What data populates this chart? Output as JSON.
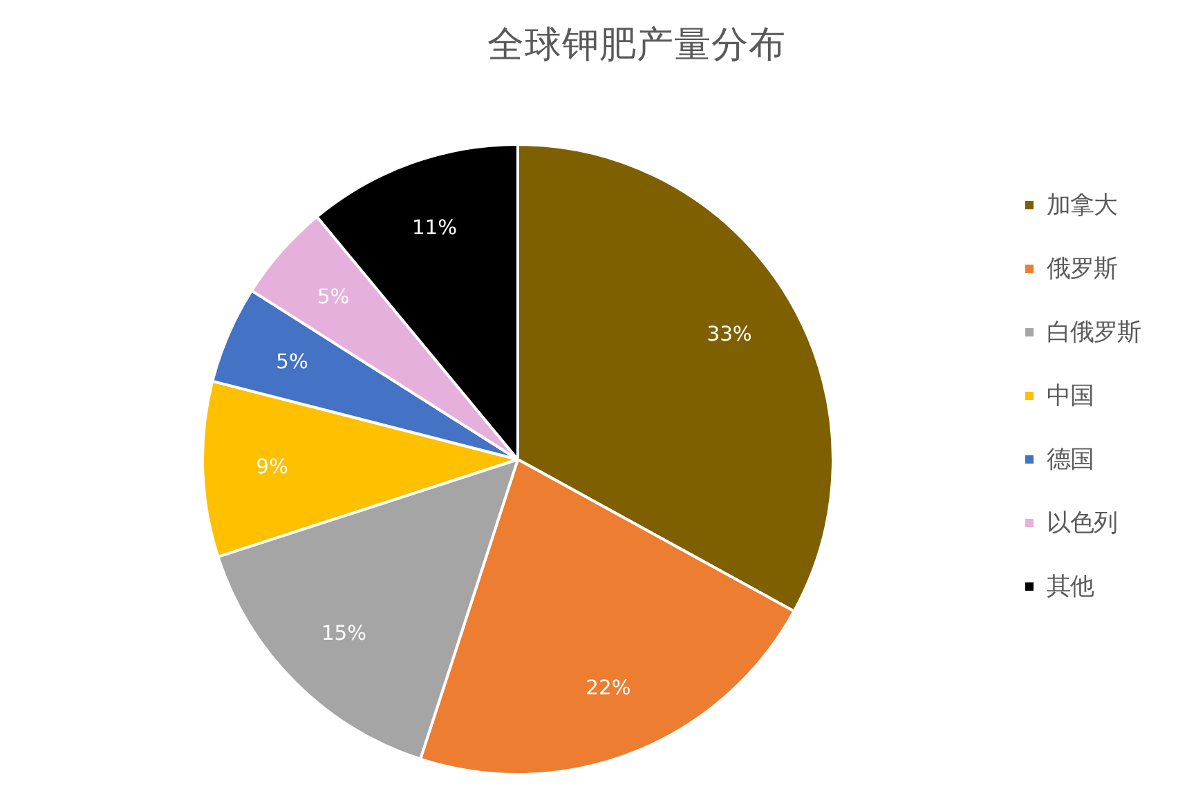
{
  "chart_data": {
    "type": "pie",
    "title": "全球钾肥产量分布",
    "categories": [
      "加拿大",
      "俄罗斯",
      "白俄罗斯",
      "中国",
      "德国",
      "以色列",
      "其他"
    ],
    "values": [
      33,
      22,
      15,
      9,
      5,
      5,
      11
    ],
    "colors": [
      "#7f6000",
      "#ed7d31",
      "#a5a5a5",
      "#ffc000",
      "#4472c4",
      "#e6b0dc",
      "#000000"
    ],
    "value_labels": [
      "33%",
      "22%",
      "15%",
      "9%",
      "5%",
      "5%",
      "11%"
    ],
    "legend": "right"
  }
}
